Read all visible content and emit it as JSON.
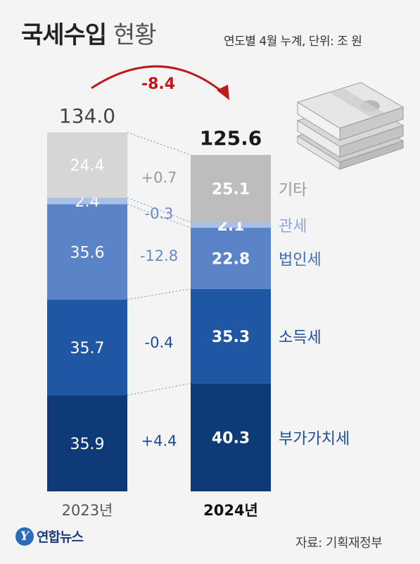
{
  "header": {
    "title_bold": "국세수입",
    "title_light": "현황",
    "subtitle": "연도별 4월 누계, 단위: 조 원"
  },
  "source": "자료: 기획재정부",
  "logo": {
    "mark": "Y",
    "name": "연합뉴스"
  },
  "chart_data": {
    "type": "bar",
    "stacked": true,
    "categories": [
      "2023년",
      "2024년"
    ],
    "totals": [
      134.0,
      125.6
    ],
    "total_labels": [
      "134.0",
      "125.6"
    ],
    "change_label": "-8.4",
    "series": [
      {
        "name": "부가가치세",
        "values": [
          35.9,
          40.3
        ],
        "labels": [
          "35.9",
          "40.3"
        ],
        "diff": "+4.4",
        "colors": [
          "#0f3a78",
          "#0f3a78"
        ],
        "label_color": "#1d4f9a"
      },
      {
        "name": "소득세",
        "values": [
          35.7,
          35.3
        ],
        "labels": [
          "35.7",
          "35.3"
        ],
        "diff": "-0.4",
        "colors": [
          "#1f57a5",
          "#1f57a5"
        ],
        "label_color": "#1d4f9a"
      },
      {
        "name": "법인세",
        "values": [
          35.6,
          22.8
        ],
        "labels": [
          "35.6",
          "22.8"
        ],
        "diff": "-12.8",
        "colors": [
          "#5b84c8",
          "#5b84c8"
        ],
        "label_color": "#3f6db9"
      },
      {
        "name": "관세",
        "values": [
          2.4,
          2.1
        ],
        "labels": [
          "2.4",
          "2.1"
        ],
        "diff": "-0.3",
        "colors": [
          "#a9c0e6",
          "#a9c0e6"
        ],
        "label_color": "#8aa6dc"
      },
      {
        "name": "기타",
        "values": [
          24.4,
          25.1
        ],
        "labels": [
          "24.4",
          "25.1"
        ],
        "diff": "+0.7",
        "colors": [
          "#d6d6d6",
          "#bdbdbd"
        ],
        "label_color": "#9a9a9a"
      }
    ],
    "colors": {
      "total_text": "#1a1a1a",
      "change": "#c0191a",
      "diff_text": "#6b8ac8",
      "diff_text_dark": "#1d4f9a"
    }
  }
}
